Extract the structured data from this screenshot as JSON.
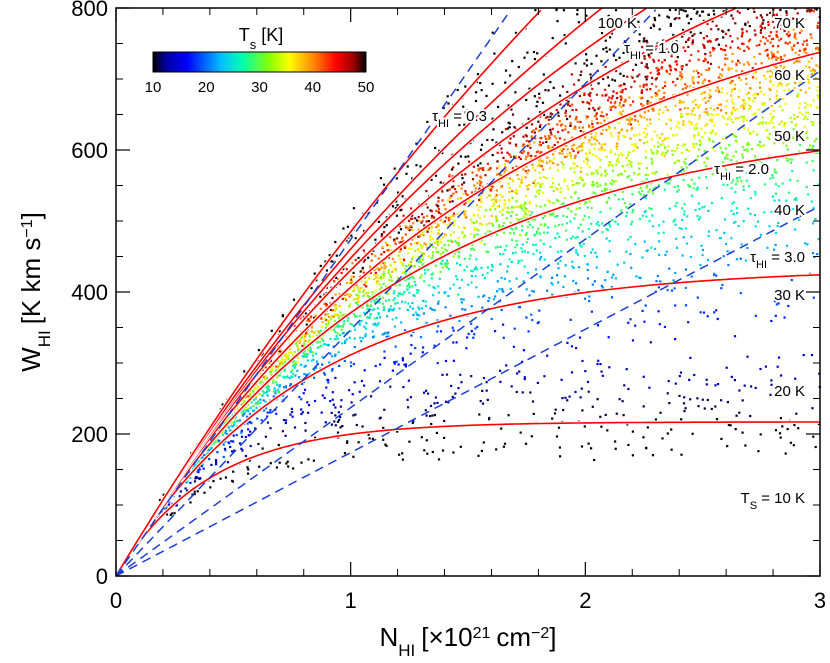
{
  "chart_data": {
    "type": "scatter",
    "xlabel": "N",
    "xlabel_sub": "HI",
    "xlabel_unit": "[×10",
    "xlabel_exp": "21",
    "xlabel_unit2": "cm",
    "xlabel_exp2": "−2",
    "xlabel_close": "]",
    "ylabel": "W",
    "ylabel_sub": "HI",
    "ylabel_unit": "[K km s",
    "ylabel_exp": "−1",
    "ylabel_close": "]",
    "xlim": [
      0,
      3
    ],
    "ylim": [
      0,
      800
    ],
    "xticks": [
      "0",
      "1",
      "2",
      "3"
    ],
    "yticks": [
      "0",
      "200",
      "400",
      "600",
      "800"
    ],
    "colorbar": {
      "title": "T",
      "title_sub": "s",
      "title_unit": "[K]",
      "range": [
        10,
        50
      ],
      "ticks": [
        "10",
        "20",
        "30",
        "40",
        "50"
      ]
    },
    "curve_model": "W = Ts * N / 1.823 * (1 - exp(-tau)) / tau, tau = N / (1.823e-3 * Ts * dv), dv = 21.7 km/s",
    "ts_curves": [
      {
        "ts": 10,
        "label": "T",
        "label_sub": "S",
        "label_rest": " = 10 K"
      },
      {
        "ts": 20,
        "label": "20 K"
      },
      {
        "ts": 30,
        "label": "30 K"
      },
      {
        "ts": 40,
        "label": "40 K"
      },
      {
        "ts": 50,
        "label": "50 K"
      },
      {
        "ts": 60,
        "label": "60 K"
      },
      {
        "ts": 70,
        "label": "70 K"
      },
      {
        "ts": 100,
        "label": "100 K"
      }
    ],
    "tau_lines": [
      {
        "tau": 0.3,
        "label": "τ",
        "label_sub": "HI",
        "label_rest": " = 0.3"
      },
      {
        "tau": 1.0,
        "label": "τ",
        "label_sub": "HI",
        "label_rest": " = 1.0"
      },
      {
        "tau": 2.0,
        "label": "τ",
        "label_sub": "HI",
        "label_rest": " = 2.0"
      },
      {
        "tau": 3.0,
        "label": "τ",
        "label_sub": "HI",
        "label_rest": " = 3.0"
      }
    ],
    "scatter_description_points": 5200,
    "colors": {
      "curve": "#ff0000",
      "tau_line": "#1a3fd6",
      "axis": "#000000"
    }
  }
}
